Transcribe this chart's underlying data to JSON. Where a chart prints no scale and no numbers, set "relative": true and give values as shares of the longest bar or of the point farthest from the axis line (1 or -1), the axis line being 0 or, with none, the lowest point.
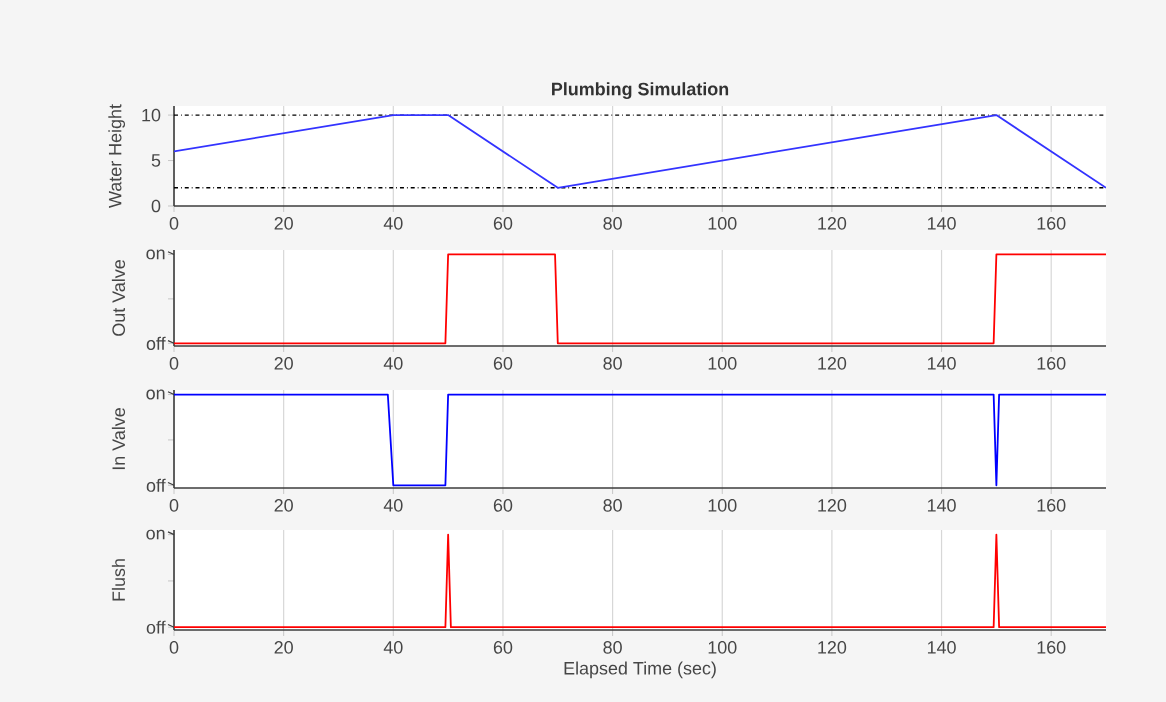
{
  "chart_data": [
    {
      "type": "line",
      "title": "Plumbing Simulation",
      "ylabel": "Water Height",
      "x": [
        0,
        40,
        50,
        70,
        150,
        170
      ],
      "values": [
        6,
        10,
        10,
        2,
        10,
        2
      ],
      "color": "#3333ff",
      "xlim": [
        0,
        170
      ],
      "xticks": [
        0,
        20,
        40,
        60,
        80,
        100,
        120,
        140,
        160
      ],
      "ylim": [
        0,
        11
      ],
      "yticks": [
        0,
        5,
        10
      ],
      "grid": "x",
      "marker": "none",
      "ref_lines": [
        {
          "axis": "y",
          "value": 10,
          "color": "#000000",
          "line_style": "dotted"
        },
        {
          "axis": "y",
          "value": 2,
          "color": "#000000",
          "line_style": "dotted"
        }
      ]
    },
    {
      "type": "line",
      "ylabel": "Out Valve",
      "x": [
        0,
        49.5,
        50,
        69.5,
        70,
        149.5,
        150,
        170
      ],
      "values": [
        0,
        0,
        1,
        1,
        0,
        0,
        1,
        1
      ],
      "color": "#ff0000",
      "xlim": [
        0,
        170
      ],
      "xticks": [
        0,
        20,
        40,
        60,
        80,
        100,
        120,
        140,
        160
      ],
      "relative": true,
      "annotations": [
        "off",
        "on"
      ],
      "grid": "x",
      "marker": "none"
    },
    {
      "type": "line",
      "ylabel": "In Valve",
      "x": [
        0,
        39,
        40,
        49.5,
        50,
        149.5,
        150,
        150.5,
        170
      ],
      "values": [
        1,
        1,
        0,
        0,
        1,
        1,
        0,
        1,
        1
      ],
      "color": "#0000ff",
      "xlim": [
        0,
        170
      ],
      "xticks": [
        0,
        20,
        40,
        60,
        80,
        100,
        120,
        140,
        160
      ],
      "relative": true,
      "annotations": [
        "off",
        "on"
      ],
      "grid": "x",
      "marker": "none"
    },
    {
      "type": "line",
      "xlabel": "Elapsed Time (sec)",
      "ylabel": "Flush",
      "x": [
        0,
        49.5,
        50,
        50.5,
        149.5,
        150,
        150.5,
        170
      ],
      "values": [
        0,
        0,
        1,
        0,
        0,
        1,
        0,
        0
      ],
      "color": "#ff0000",
      "xlim": [
        0,
        170
      ],
      "xticks": [
        0,
        20,
        40,
        60,
        80,
        100,
        120,
        140,
        160
      ],
      "relative": true,
      "annotations": [
        "off",
        "on"
      ],
      "grid": "x",
      "marker": "none"
    }
  ]
}
